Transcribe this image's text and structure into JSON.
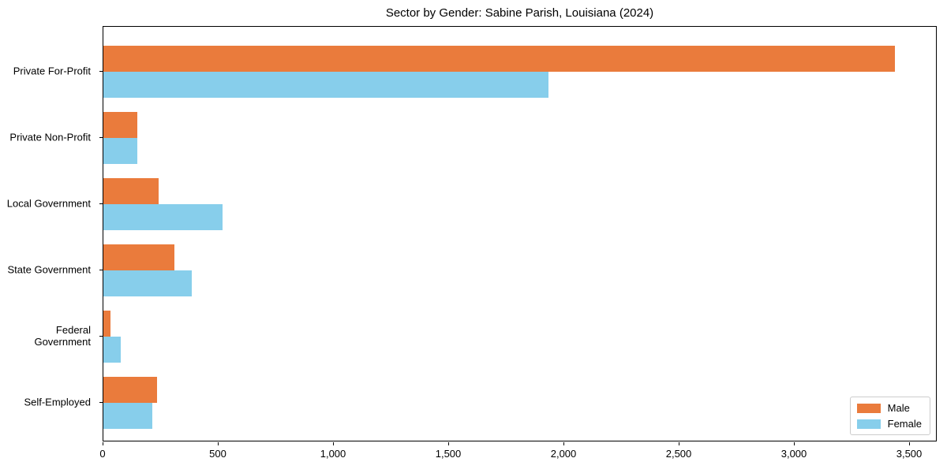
{
  "title": "Sector by Gender: Sabine Parish, Louisiana (2024)",
  "chart_data": {
    "type": "bar",
    "orientation": "horizontal",
    "title": "Sector by Gender: Sabine Parish, Louisiana (2024)",
    "xlabel": "",
    "ylabel": "",
    "categories": [
      "Private For-Profit",
      "Private Non-Profit",
      "Local Government",
      "State Government",
      "Federal Government",
      "Self-Employed"
    ],
    "series": [
      {
        "name": "Male",
        "color": "#EA7B3C",
        "values": [
          3436,
          146,
          238,
          309,
          31,
          234
        ]
      },
      {
        "name": "Female",
        "color": "#87CEEB",
        "values": [
          1933,
          148,
          516,
          383,
          74,
          211
        ]
      }
    ],
    "xlim": [
      0,
      3620
    ],
    "x_ticks": [
      0,
      500,
      1000,
      1500,
      2000,
      2500,
      3000,
      3500
    ],
    "x_tick_labels": [
      "0",
      "500",
      "1,000",
      "1,500",
      "2,000",
      "2,500",
      "3,000",
      "3,500"
    ],
    "grid": false,
    "legend": {
      "position": "lower right",
      "entries": [
        "Male",
        "Female"
      ]
    }
  },
  "legend": {
    "items": [
      {
        "label": "Male",
        "color": "#EA7B3C"
      },
      {
        "label": "Female",
        "color": "#87CEEB"
      }
    ]
  }
}
